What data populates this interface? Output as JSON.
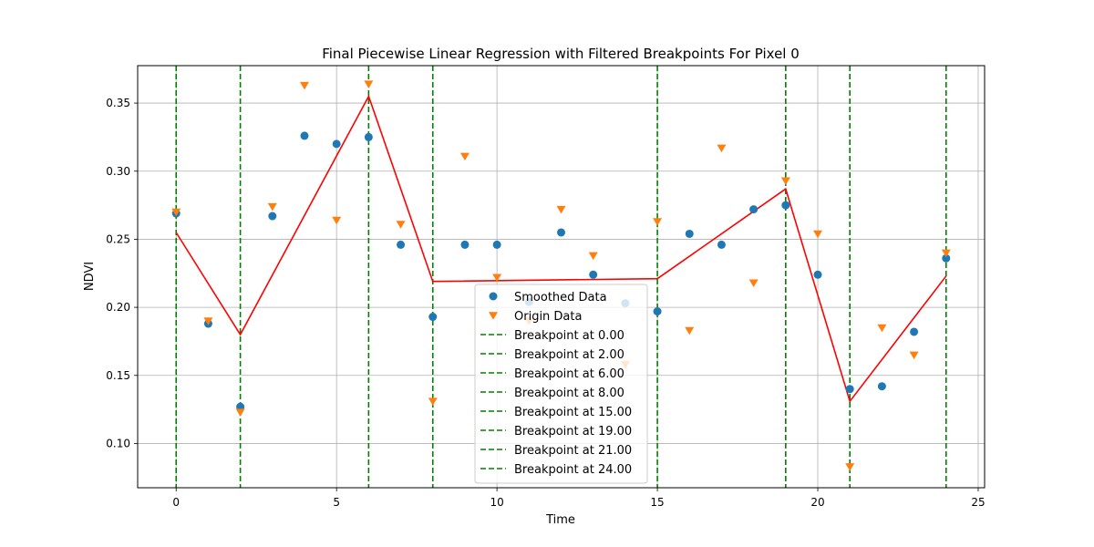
{
  "chart_data": {
    "type": "scatter",
    "title": "Final Piecewise Linear Regression with Filtered Breakpoints For Pixel 0",
    "xlabel": "Time",
    "ylabel": "NDVI",
    "xlim": [
      -1.2,
      25.2
    ],
    "ylim": [
      0.0675,
      0.3775
    ],
    "xticks": [
      0,
      5,
      10,
      15,
      20,
      25
    ],
    "xtick_labels": [
      "0",
      "5",
      "10",
      "15",
      "20",
      "25"
    ],
    "yticks": [
      0.1,
      0.15,
      0.2,
      0.25,
      0.3,
      0.35
    ],
    "ytick_labels": [
      "0.10",
      "0.15",
      "0.20",
      "0.25",
      "0.30",
      "0.35"
    ],
    "grid": true,
    "legend_position": "bottom-center",
    "colors": {
      "smoothed": "#1f77b4",
      "origin": "#ff7f0e",
      "fit": "#ff0000",
      "breakpoint": "#008000",
      "grid": "#b0b0b0"
    },
    "series": [
      {
        "name": "Smoothed Data",
        "marker": "circle",
        "x": [
          0,
          1,
          2,
          3,
          4,
          5,
          6,
          7,
          8,
          9,
          10,
          11,
          12,
          13,
          14,
          15,
          16,
          17,
          18,
          19,
          20,
          21,
          22,
          23,
          24
        ],
        "y": [
          0.269,
          0.188,
          0.127,
          0.267,
          0.326,
          0.32,
          0.325,
          0.246,
          0.193,
          0.246,
          0.246,
          0.204,
          0.255,
          0.224,
          0.203,
          0.197,
          0.254,
          0.246,
          0.272,
          0.275,
          0.224,
          0.14,
          0.142,
          0.182,
          0.236
        ]
      },
      {
        "name": "Origin Data",
        "marker": "triangle-down",
        "x": [
          0,
          1,
          2,
          3,
          4,
          5,
          6,
          7,
          8,
          9,
          10,
          11,
          12,
          13,
          14,
          15,
          16,
          17,
          18,
          19,
          20,
          21,
          22,
          23,
          24
        ],
        "y": [
          0.27,
          0.19,
          0.123,
          0.274,
          0.363,
          0.264,
          0.364,
          0.261,
          0.131,
          0.311,
          0.222,
          0.19,
          0.272,
          0.238,
          0.158,
          0.263,
          0.183,
          0.317,
          0.218,
          0.293,
          0.254,
          0.083,
          0.185,
          0.165,
          0.24
        ]
      }
    ],
    "fit_line": {
      "x": [
        0,
        2,
        6,
        8,
        15,
        19,
        21,
        24
      ],
      "y": [
        0.255,
        0.18,
        0.355,
        0.219,
        0.221,
        0.287,
        0.131,
        0.223
      ]
    },
    "breakpoints": [
      {
        "x": 0,
        "label": "Breakpoint at 0.00"
      },
      {
        "x": 2,
        "label": "Breakpoint at 2.00"
      },
      {
        "x": 6,
        "label": "Breakpoint at 6.00"
      },
      {
        "x": 8,
        "label": "Breakpoint at 8.00"
      },
      {
        "x": 15,
        "label": "Breakpoint at 15.00"
      },
      {
        "x": 19,
        "label": "Breakpoint at 19.00"
      },
      {
        "x": 21,
        "label": "Breakpoint at 21.00"
      },
      {
        "x": 24,
        "label": "Breakpoint at 24.00"
      }
    ]
  }
}
